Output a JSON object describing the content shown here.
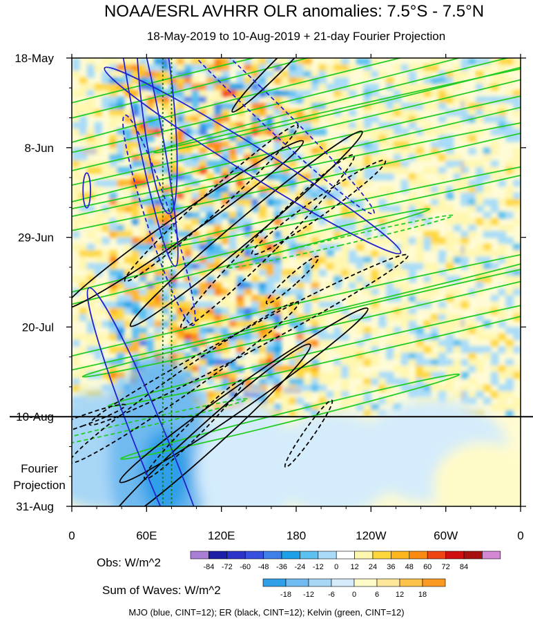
{
  "chart_data": {
    "type": "heatmap",
    "title": "NOAA/ESRL AVHRR OLR anomalies: 7.5°S - 7.5°N",
    "subtitle": "18-May-2019 to 10-Aug-2019 + 21-day Fourier Projection",
    "x_ticks": [
      "0",
      "60E",
      "120E",
      "180",
      "120W",
      "60W",
      "0"
    ],
    "x_tick_lon": [
      0,
      60,
      120,
      180,
      240,
      300,
      360
    ],
    "y_ticks": [
      "18-May",
      "8-Jun",
      "29-Jun",
      "20-Jul",
      "10-Aug",
      "31-Aug"
    ],
    "y_tick_day": [
      0,
      21,
      42,
      63,
      84,
      105
    ],
    "projection_start_day": 84,
    "projection_label": [
      "Fourier",
      "Projection"
    ],
    "dotted_lines_lon": [
      73,
      80
    ],
    "obs_colorbar": {
      "label": "Obs: W/m^2",
      "ticks": [
        "-84",
        "-72",
        "-60",
        "-48",
        "-36",
        "-24",
        "-12",
        "0",
        "12",
        "24",
        "36",
        "48",
        "60",
        "72",
        "84"
      ],
      "colors": [
        "#a97fd6",
        "#1b1fa6",
        "#2a34c9",
        "#3850e0",
        "#3f80e8",
        "#1ea0e8",
        "#5cc0f0",
        "#a8dcf8",
        "#ffffff",
        "#fff7b0",
        "#fed73c",
        "#fdb51e",
        "#fa8a10",
        "#f04512",
        "#d01010",
        "#a81010",
        "#d488d4"
      ]
    },
    "wave_colorbar": {
      "label": "Sum of Waves: W/m^2",
      "ticks": [
        "-18",
        "-12",
        "-6",
        "0",
        "6",
        "12",
        "18"
      ],
      "colors": [
        "#2f9fe8",
        "#6fbaf0",
        "#a7d6f6",
        "#d4ecfb",
        "#fffbc8",
        "#fee79a",
        "#fdc24a",
        "#fb9a22"
      ]
    },
    "footer": "MJO (blue, CINT=12); ER (black, CINT=12); Kelvin (green, CINT=12)",
    "contour_colors": {
      "mjo": "#2222cc",
      "er": "#000000",
      "kelvin": "#22cc22"
    },
    "mjo_contours": [
      {
        "lon": 60,
        "day": 14,
        "rx": 10,
        "ry": 52,
        "angle": -11,
        "dashed": false
      },
      {
        "lon": 68,
        "day": 8,
        "rx": 13,
        "ry": 42,
        "angle": -6,
        "dashed": false
      },
      {
        "lon": 145,
        "day": 24,
        "rx": 11,
        "ry": 60,
        "angle": -58,
        "dashed": false
      },
      {
        "lon": 145,
        "day": 9,
        "rx": 10,
        "ry": 58,
        "angle": -46,
        "dashed": true
      },
      {
        "lon": 70,
        "day": 38,
        "rx": 10,
        "ry": 38,
        "angle": -18,
        "dashed": true
      },
      {
        "lon": 68,
        "day": 93,
        "rx": 13,
        "ry": 62,
        "angle": -22,
        "dashed": false
      },
      {
        "lon": 12,
        "day": 31,
        "rx": 3,
        "ry": 6,
        "angle": 0,
        "dashed": false
      }
    ],
    "er_contours": [
      {
        "lon": 90,
        "day": 39,
        "rx": 9,
        "ry": 50,
        "angle": 55,
        "dashed": false
      },
      {
        "lon": 112,
        "day": 34,
        "rx": 8,
        "ry": 40,
        "angle": 48,
        "dashed": true
      },
      {
        "lon": 140,
        "day": 40,
        "rx": 9,
        "ry": 52,
        "angle": 50,
        "dashed": false
      },
      {
        "lon": 157,
        "day": 43,
        "rx": 9,
        "ry": 42,
        "angle": 45,
        "dashed": true
      },
      {
        "lon": 198,
        "day": 35,
        "rx": 7,
        "ry": 28,
        "angle": 55,
        "dashed": true
      },
      {
        "lon": 177,
        "day": 52,
        "rx": 4,
        "ry": 12,
        "angle": 48,
        "dashed": true
      },
      {
        "lon": 142,
        "day": 66,
        "rx": 9,
        "ry": 62,
        "angle": 62,
        "dashed": true
      },
      {
        "lon": 90,
        "day": 76,
        "rx": 9,
        "ry": 48,
        "angle": 55,
        "dashed": true
      },
      {
        "lon": 138,
        "day": 79,
        "rx": 9,
        "ry": 52,
        "angle": 55,
        "dashed": false
      },
      {
        "lon": 108,
        "day": 89,
        "rx": 10,
        "ry": 48,
        "angle": 48,
        "dashed": false
      },
      {
        "lon": 98,
        "day": 87,
        "rx": 6,
        "ry": 24,
        "angle": 45,
        "dashed": true
      },
      {
        "lon": 190,
        "day": 88,
        "rx": 4,
        "ry": 14,
        "angle": 35,
        "dashed": true
      },
      {
        "lon": 165,
        "day": 2,
        "rx": 5,
        "ry": 22,
        "angle": 45,
        "dashed": false
      },
      {
        "lon": 8,
        "day": 85,
        "rx": 4,
        "ry": 16,
        "angle": 70,
        "dashed": true
      }
    ],
    "kelvin_contours": [
      {
        "lon": 45,
        "day": 9,
        "rx": 6,
        "ry": 110,
        "angle": 76,
        "dashed": false
      },
      {
        "lon": 205,
        "day": 6,
        "rx": 6,
        "ry": 120,
        "angle": 76,
        "dashed": false
      },
      {
        "lon": 315,
        "day": 4,
        "rx": 5,
        "ry": 110,
        "angle": 76,
        "dashed": false
      },
      {
        "lon": 120,
        "day": 20,
        "rx": 6,
        "ry": 150,
        "angle": 77,
        "dashed": false
      },
      {
        "lon": 230,
        "day": 19,
        "rx": 5,
        "ry": 120,
        "angle": 77,
        "dashed": false
      },
      {
        "lon": 125,
        "day": 31,
        "rx": 6,
        "ry": 140,
        "angle": 78,
        "dashed": false
      },
      {
        "lon": 255,
        "day": 33,
        "rx": 4,
        "ry": 80,
        "angle": 78,
        "dashed": false
      },
      {
        "lon": 72,
        "day": 51,
        "rx": 5,
        "ry": 95,
        "angle": 76,
        "dashed": false
      },
      {
        "lon": 270,
        "day": 57,
        "rx": 5,
        "ry": 115,
        "angle": 77,
        "dashed": false
      },
      {
        "lon": 125,
        "day": 63,
        "rx": 6,
        "ry": 130,
        "angle": 77,
        "dashed": false
      },
      {
        "lon": 245,
        "day": 67,
        "rx": 5,
        "ry": 95,
        "angle": 77,
        "dashed": false
      },
      {
        "lon": 175,
        "day": 84,
        "rx": 4,
        "ry": 60,
        "angle": 76,
        "dashed": false
      },
      {
        "lon": 215,
        "day": 43,
        "rx": 3,
        "ry": 40,
        "angle": 77,
        "dashed": true
      },
      {
        "lon": 50,
        "day": 86,
        "rx": 3,
        "ry": 40,
        "angle": 77,
        "dashed": true
      }
    ]
  }
}
